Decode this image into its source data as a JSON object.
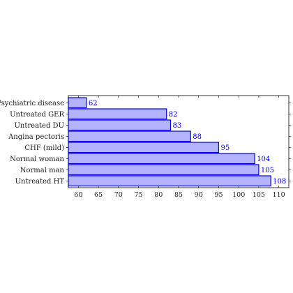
{
  "chart_data": {
    "type": "bar",
    "orientation": "horizontal",
    "categories": [
      "Psychiatric disease",
      "Untreated GER",
      "Untreated DU",
      "Angina pectoris",
      "CHF (mild)",
      "Normal woman",
      "Normal man",
      "Untreated HT"
    ],
    "values": [
      62,
      82,
      83,
      88,
      95,
      104,
      105,
      108
    ],
    "title": "",
    "xlabel": "",
    "ylabel": "",
    "xlim": [
      57.5,
      112.5
    ],
    "xticks": [
      60,
      65,
      70,
      75,
      80,
      85,
      90,
      95,
      100,
      105,
      110
    ],
    "bar_fill_color": "#b3b3ff",
    "bar_stroke_color": "#0000cc",
    "data_label_color": "#0000ff",
    "grid": false,
    "legend": "none"
  }
}
